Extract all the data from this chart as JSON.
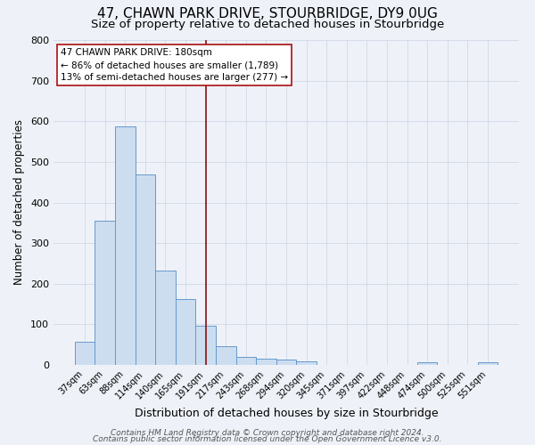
{
  "title": "47, CHAWN PARK DRIVE, STOURBRIDGE, DY9 0UG",
  "subtitle": "Size of property relative to detached houses in Stourbridge",
  "xlabel": "Distribution of detached houses by size in Stourbridge",
  "ylabel": "Number of detached properties",
  "bar_labels": [
    "37sqm",
    "63sqm",
    "88sqm",
    "114sqm",
    "140sqm",
    "165sqm",
    "191sqm",
    "217sqm",
    "243sqm",
    "268sqm",
    "294sqm",
    "320sqm",
    "345sqm",
    "371sqm",
    "397sqm",
    "422sqm",
    "448sqm",
    "474sqm",
    "500sqm",
    "525sqm",
    "551sqm"
  ],
  "bar_values": [
    58,
    355,
    588,
    470,
    232,
    163,
    96,
    47,
    20,
    15,
    13,
    8,
    0,
    0,
    0,
    0,
    0,
    7,
    0,
    0,
    7
  ],
  "bar_color": "#ccddf0",
  "bar_edge_color": "#6699cc",
  "background_color": "#eef2f8",
  "grid_color": "#d0d8e8",
  "vline_color": "#8b1010",
  "annotation_text": "47 CHAWN PARK DRIVE: 180sqm\n← 86% of detached houses are smaller (1,789)\n13% of semi-detached houses are larger (277) →",
  "annotation_box_color": "#ffffff",
  "annotation_box_edge": "#aa1010",
  "ylim": [
    0,
    800
  ],
  "yticks": [
    0,
    100,
    200,
    300,
    400,
    500,
    600,
    700,
    800
  ],
  "footer_line1": "Contains HM Land Registry data © Crown copyright and database right 2024.",
  "footer_line2": "Contains public sector information licensed under the Open Government Licence v3.0.",
  "title_fontsize": 11,
  "subtitle_fontsize": 9.5,
  "xlabel_fontsize": 9,
  "ylabel_fontsize": 8.5,
  "tick_fontsize": 7,
  "ytick_fontsize": 8,
  "footer_fontsize": 6.5,
  "ann_fontsize": 7.5
}
